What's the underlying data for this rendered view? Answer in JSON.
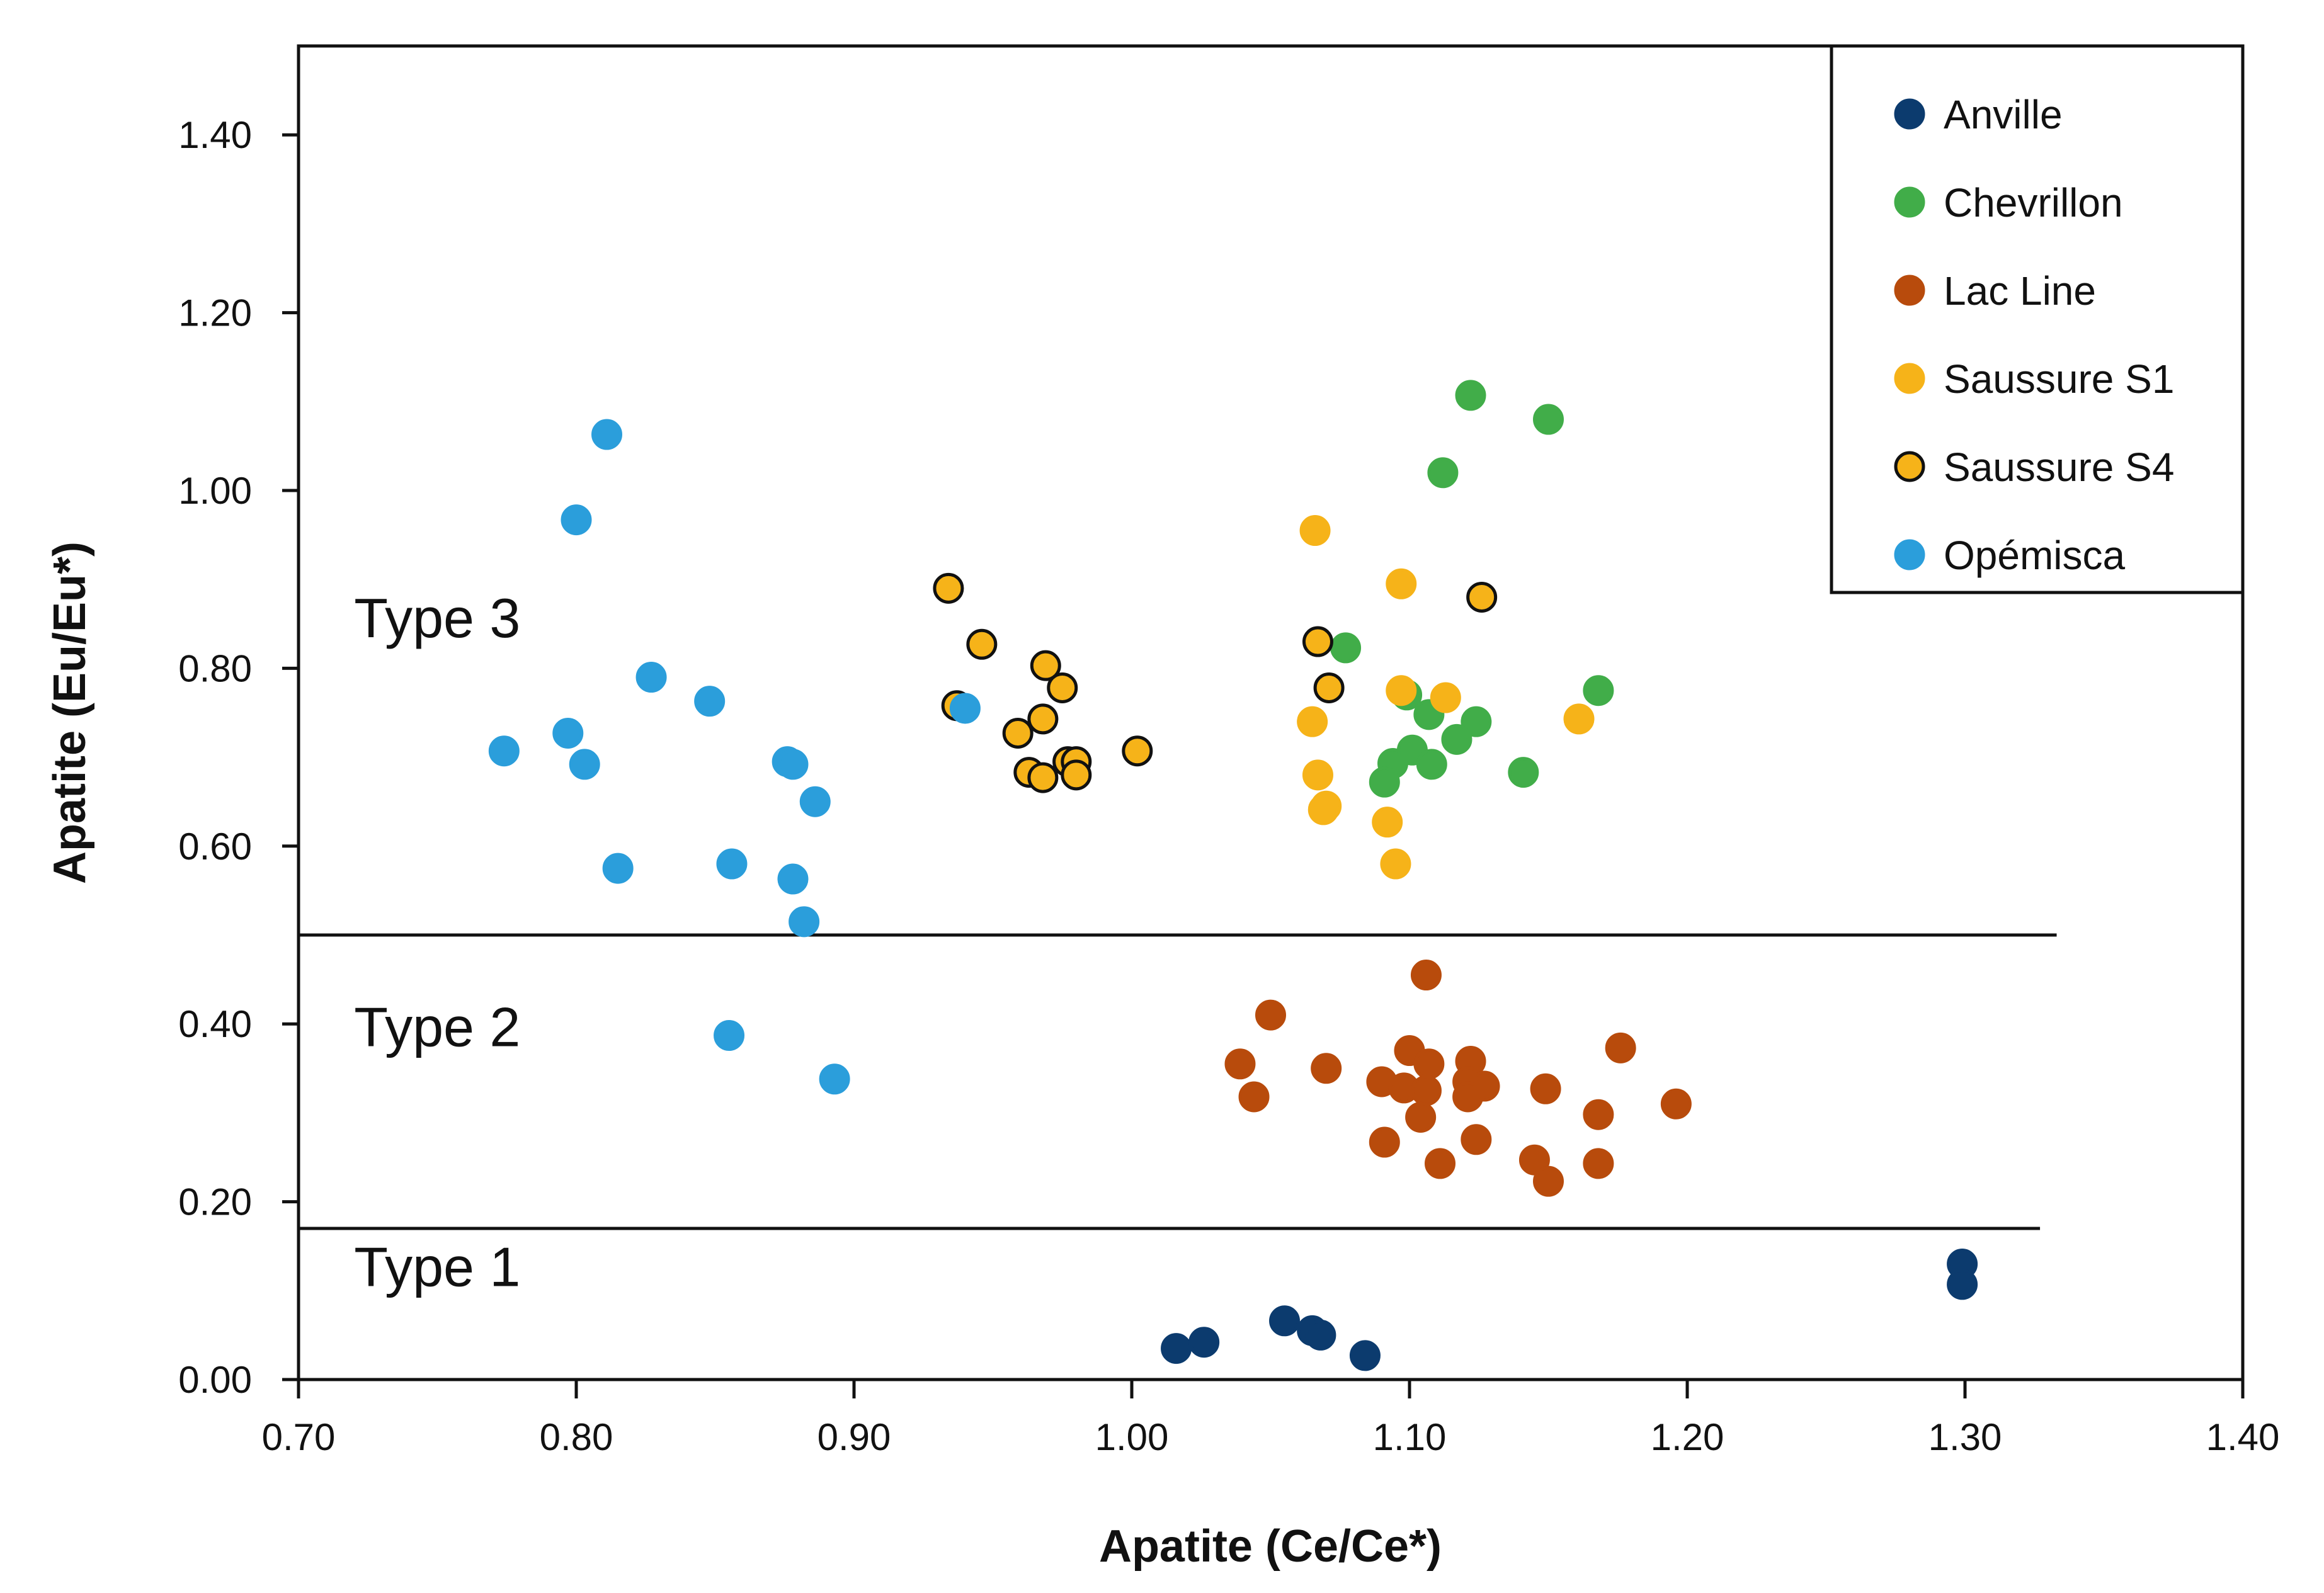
{
  "chart_data": {
    "type": "scatter",
    "xlabel": "Apatite (Ce/Ce*)",
    "ylabel": "Apatite (Eu/Eu*)",
    "xlim": [
      0.7,
      1.4
    ],
    "ylim": [
      0.0,
      1.5
    ],
    "xticks": [
      "0.70",
      "0.80",
      "0.90",
      "1.00",
      "1.10",
      "1.20",
      "1.30",
      "1.40"
    ],
    "yticks": [
      "0.00",
      "0.20",
      "0.40",
      "0.60",
      "0.80",
      "1.00",
      "1.20",
      "1.40"
    ],
    "grid": false,
    "legend_position": "top-right",
    "regions": [
      {
        "label": "Type 3",
        "x": 0.72,
        "y": 0.835
      },
      {
        "label": "Type 2",
        "x": 0.72,
        "y": 0.375
      },
      {
        "label": "Type 1",
        "x": 0.72,
        "y": 0.105
      }
    ],
    "boundaries": [
      {
        "y": 0.5,
        "x_start": 0.7,
        "x_end": 1.333
      },
      {
        "y": 0.17,
        "x_start": 0.7,
        "x_end": 1.327
      }
    ],
    "series": [
      {
        "name": "Anville",
        "color": "#0c3b6e",
        "edge": "#0c3b6e",
        "points": [
          [
            1.016,
            0.035
          ],
          [
            1.026,
            0.042
          ],
          [
            1.055,
            0.066
          ],
          [
            1.065,
            0.055
          ],
          [
            1.068,
            0.05
          ],
          [
            1.084,
            0.027
          ],
          [
            1.299,
            0.13
          ],
          [
            1.299,
            0.107
          ]
        ]
      },
      {
        "name": "Chevrillon",
        "color": "#41ad49",
        "edge": "#41ad49",
        "points": [
          [
            1.122,
            1.107
          ],
          [
            1.15,
            1.08
          ],
          [
            1.112,
            1.02
          ],
          [
            1.077,
            0.823
          ],
          [
            1.099,
            0.77
          ],
          [
            1.168,
            0.775
          ],
          [
            1.107,
            0.748
          ],
          [
            1.124,
            0.74
          ],
          [
            1.117,
            0.72
          ],
          [
            1.094,
            0.693
          ],
          [
            1.101,
            0.708
          ],
          [
            1.108,
            0.692
          ],
          [
            1.091,
            0.672
          ],
          [
            1.141,
            0.683
          ]
        ]
      },
      {
        "name": "Lac Line",
        "color": "#b84b0c",
        "edge": "#b84b0c",
        "points": [
          [
            1.106,
            0.455
          ],
          [
            1.05,
            0.41
          ],
          [
            1.039,
            0.355
          ],
          [
            1.07,
            0.35
          ],
          [
            1.044,
            0.318
          ],
          [
            1.1,
            0.37
          ],
          [
            1.107,
            0.355
          ],
          [
            1.09,
            0.335
          ],
          [
            1.098,
            0.328
          ],
          [
            1.106,
            0.325
          ],
          [
            1.104,
            0.295
          ],
          [
            1.122,
            0.358
          ],
          [
            1.121,
            0.335
          ],
          [
            1.127,
            0.33
          ],
          [
            1.121,
            0.318
          ],
          [
            1.149,
            0.327
          ],
          [
            1.176,
            0.373
          ],
          [
            1.168,
            0.298
          ],
          [
            1.196,
            0.31
          ],
          [
            1.091,
            0.267
          ],
          [
            1.111,
            0.243
          ],
          [
            1.124,
            0.27
          ],
          [
            1.145,
            0.247
          ],
          [
            1.15,
            0.223
          ],
          [
            1.168,
            0.243
          ]
        ]
      },
      {
        "name": "Saussure S1",
        "color": "#f6b319",
        "edge": "#f6b319",
        "points": [
          [
            1.066,
            0.955
          ],
          [
            1.097,
            0.895
          ],
          [
            1.097,
            0.775
          ],
          [
            1.113,
            0.767
          ],
          [
            1.065,
            0.74
          ],
          [
            1.161,
            0.743
          ],
          [
            1.067,
            0.68
          ],
          [
            1.07,
            0.645
          ],
          [
            1.069,
            0.641
          ],
          [
            1.092,
            0.627
          ],
          [
            1.095,
            0.58
          ]
        ]
      },
      {
        "name": "Saussure S4",
        "color": "#f6b319",
        "edge": "#111111",
        "points": [
          [
            0.934,
            0.89
          ],
          [
            0.946,
            0.827
          ],
          [
            0.937,
            0.758
          ],
          [
            0.969,
            0.803
          ],
          [
            0.975,
            0.778
          ],
          [
            0.968,
            0.743
          ],
          [
            0.959,
            0.727
          ],
          [
            0.963,
            0.683
          ],
          [
            0.968,
            0.677
          ],
          [
            0.977,
            0.695
          ],
          [
            0.98,
            0.695
          ],
          [
            0.98,
            0.68
          ],
          [
            1.002,
            0.707
          ],
          [
            1.126,
            0.88
          ],
          [
            1.067,
            0.83
          ],
          [
            1.071,
            0.778
          ]
        ]
      },
      {
        "name": "Opémisca",
        "color": "#2b9edb",
        "edge": "#2b9edb",
        "points": [
          [
            0.811,
            1.063
          ],
          [
            0.8,
            0.967
          ],
          [
            0.827,
            0.79
          ],
          [
            0.848,
            0.763
          ],
          [
            0.94,
            0.755
          ],
          [
            0.774,
            0.707
          ],
          [
            0.797,
            0.727
          ],
          [
            0.803,
            0.692
          ],
          [
            0.876,
            0.695
          ],
          [
            0.878,
            0.692
          ],
          [
            0.886,
            0.65
          ],
          [
            0.815,
            0.575
          ],
          [
            0.856,
            0.58
          ],
          [
            0.878,
            0.563
          ],
          [
            0.882,
            0.515
          ],
          [
            0.855,
            0.387
          ],
          [
            0.893,
            0.338
          ]
        ]
      }
    ]
  }
}
